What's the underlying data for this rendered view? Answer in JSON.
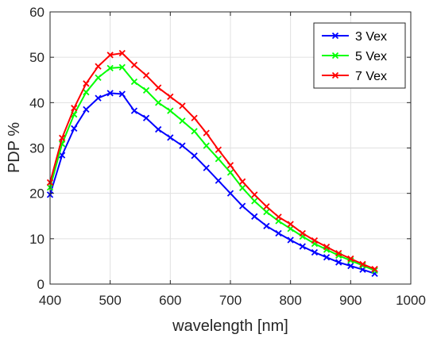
{
  "chart_data": {
    "type": "line",
    "title": "",
    "xlabel": "wavelength [nm]",
    "ylabel": "PDP %",
    "xlim": [
      400,
      1000
    ],
    "ylim": [
      0,
      60
    ],
    "xticks": [
      "400",
      "500",
      "600",
      "700",
      "800",
      "900",
      "1000"
    ],
    "yticks": [
      "0",
      "10",
      "20",
      "30",
      "40",
      "50",
      "60"
    ],
    "grid": true,
    "legend_position": "top-right",
    "marker": "x",
    "x": [
      400,
      420,
      440,
      460,
      480,
      500,
      520,
      540,
      560,
      580,
      600,
      620,
      640,
      660,
      680,
      700,
      720,
      740,
      760,
      780,
      800,
      820,
      840,
      860,
      880,
      900,
      920,
      940
    ],
    "series": [
      {
        "name": "3 Vex",
        "color": "#0000ff",
        "values": [
          19.7,
          28.4,
          34.3,
          38.5,
          41.0,
          42.1,
          41.9,
          38.2,
          36.6,
          34.1,
          32.3,
          30.5,
          28.3,
          25.6,
          22.8,
          20.0,
          17.2,
          14.9,
          12.8,
          11.2,
          9.7,
          8.3,
          7.0,
          5.9,
          4.8,
          4.0,
          3.2,
          2.3
        ]
      },
      {
        "name": "5 Vex",
        "color": "#00ff00",
        "values": [
          21.3,
          30.9,
          37.4,
          42.3,
          45.5,
          47.6,
          47.8,
          44.6,
          42.7,
          40.0,
          38.2,
          36.0,
          33.7,
          30.5,
          27.6,
          24.6,
          21.2,
          18.3,
          15.9,
          13.9,
          12.2,
          10.5,
          8.9,
          7.6,
          6.3,
          5.2,
          4.1,
          3.0
        ]
      },
      {
        "name": "7 Vex",
        "color": "#ff0000",
        "values": [
          22.4,
          32.2,
          38.8,
          44.2,
          48.0,
          50.5,
          50.9,
          48.3,
          46.0,
          43.3,
          41.3,
          39.3,
          36.6,
          33.3,
          29.6,
          26.2,
          22.6,
          19.7,
          17.1,
          14.8,
          13.2,
          11.2,
          9.6,
          8.2,
          6.8,
          5.6,
          4.4,
          3.3
        ]
      }
    ]
  }
}
